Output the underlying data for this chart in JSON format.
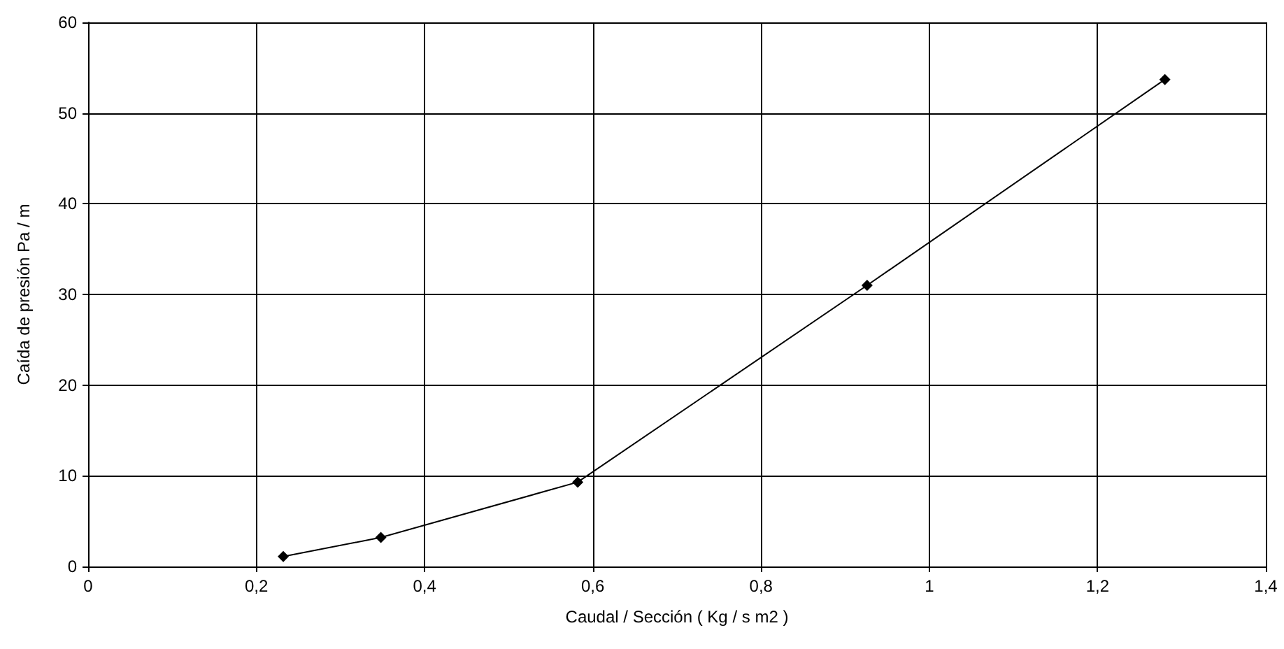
{
  "chart_data": {
    "type": "line",
    "xlabel": "Caudal / Sección ( Kg / s m2 )",
    "ylabel": "Caída de presión Pa / m",
    "x": [
      0.232,
      0.348,
      0.582,
      0.926,
      1.28
    ],
    "series": [
      {
        "color": "#000000",
        "values": [
          1.1,
          3.2,
          9.3,
          31,
          53.7
        ]
      }
    ],
    "xlim": [
      0,
      1.4
    ],
    "xticks": [
      0,
      {
        "value": 0.2,
        "label": "0,2"
      },
      {
        "value": 0.4,
        "label": "0,4"
      },
      {
        "value": 0.6,
        "label": "0,6"
      },
      {
        "value": 0.8,
        "label": "0,8"
      },
      1,
      {
        "value": 1.2,
        "label": "1,2"
      },
      {
        "value": 1.4,
        "label": "1,4"
      }
    ],
    "ylim": [
      0,
      60
    ],
    "yticks": [
      0,
      10,
      20,
      30,
      40,
      50,
      60
    ],
    "grid": true,
    "marker": "diamond",
    "line_style": "solid"
  }
}
